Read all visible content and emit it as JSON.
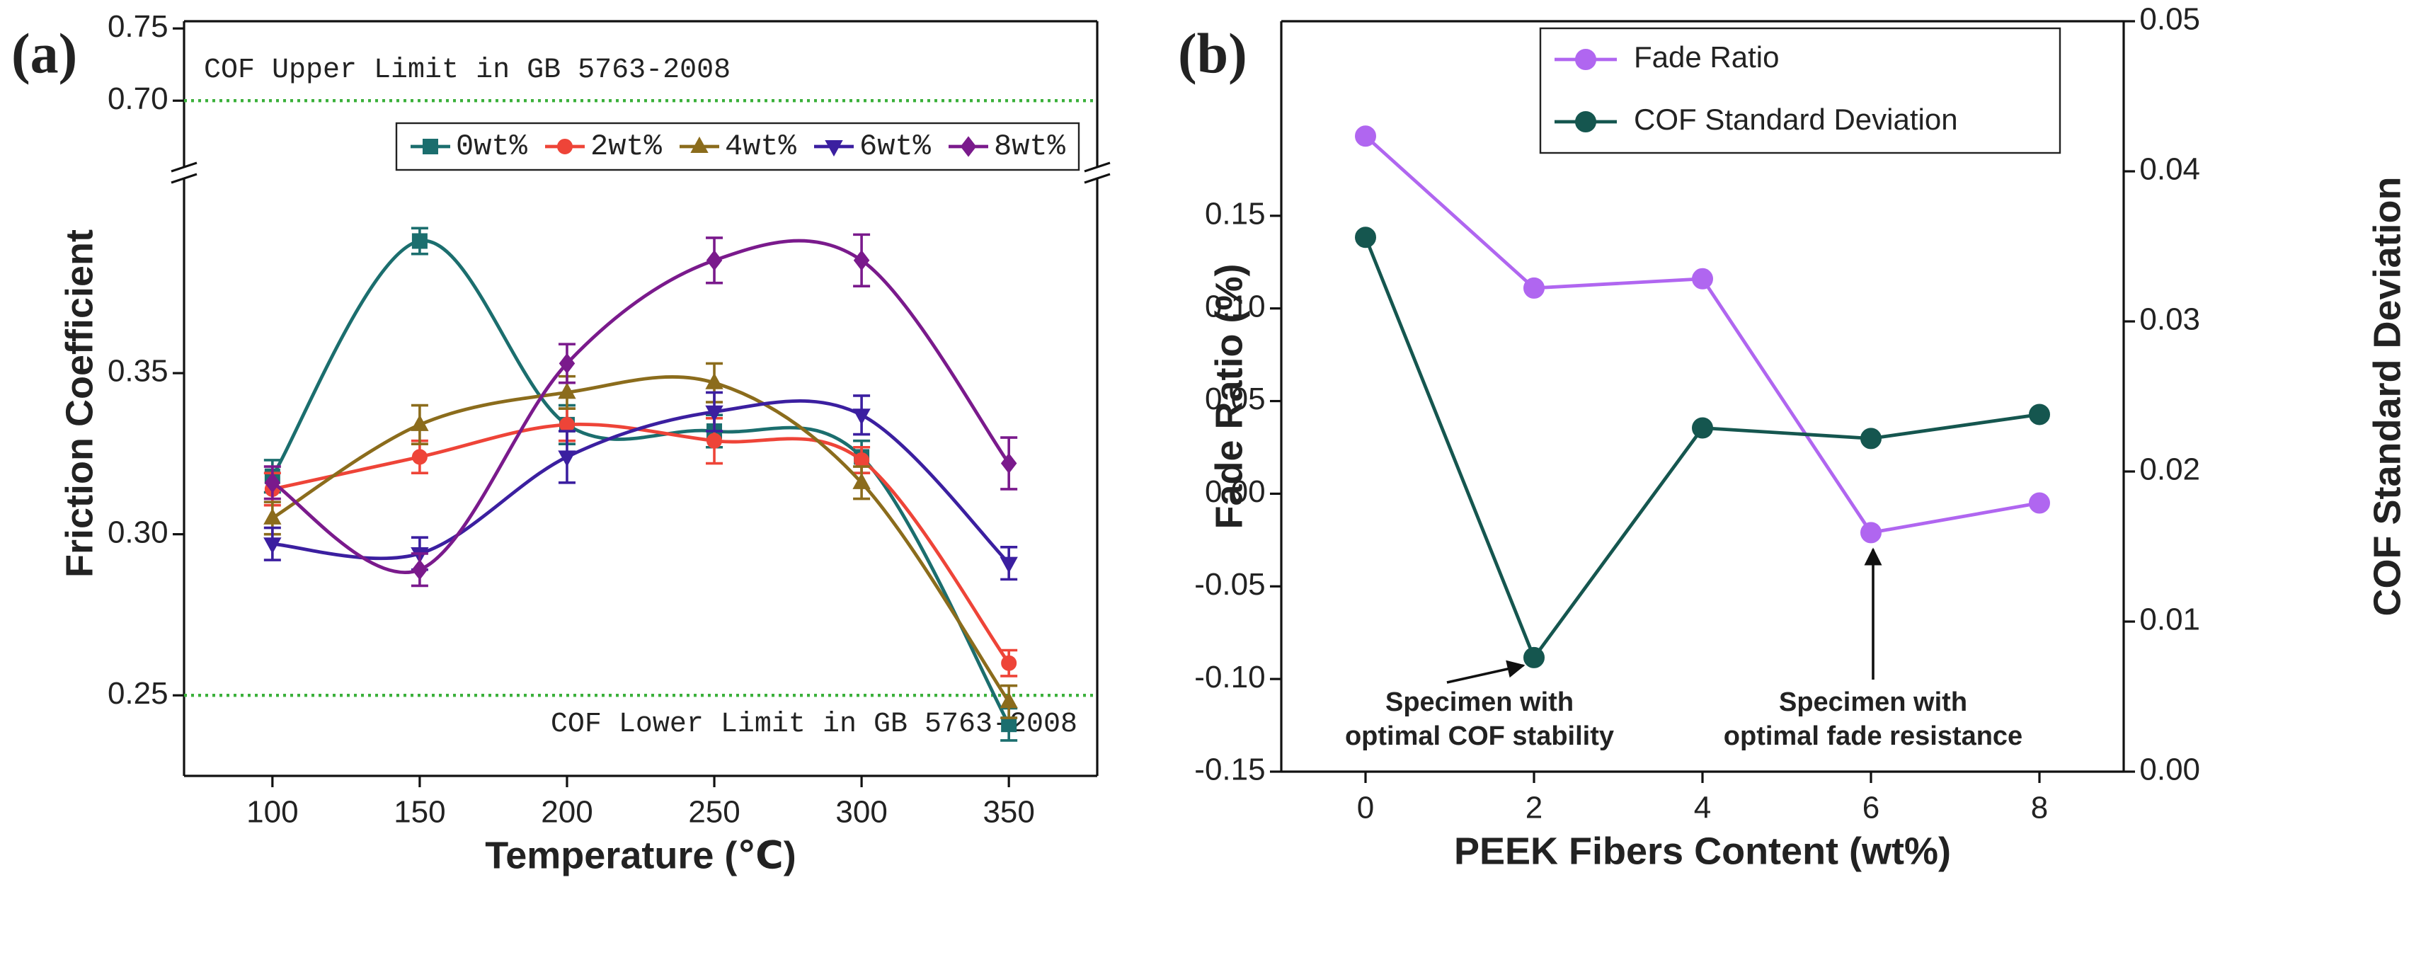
{
  "chart_data": [
    {
      "type": "line",
      "panel_label": "(a)",
      "smooth": true,
      "x_label": "Temperature (℃)",
      "y_label": "Friction Coefficient",
      "x": [
        100,
        150,
        200,
        250,
        300,
        350
      ],
      "xlim": [
        70,
        380
      ],
      "xticks": [
        100,
        150,
        200,
        250,
        300,
        350
      ],
      "ylim": [
        0.225,
        0.41
      ],
      "yticks": [
        {
          "value": 0.25,
          "label": "0.25"
        },
        {
          "value": 0.3,
          "label": "0.30"
        },
        {
          "value": 0.35,
          "label": "0.35"
        }
      ],
      "upper_ylim": [
        0.655,
        0.755
      ],
      "upper_yticks": [
        {
          "value": 0.7,
          "label": "0.70"
        },
        {
          "value": 0.75,
          "label": "0.75"
        }
      ],
      "reference_lines": [
        {
          "value": 0.7,
          "label": "COF Upper Limit in GB 5763-2008",
          "color": "#3bb03b"
        },
        {
          "value": 0.25,
          "label": "COF Lower Limit in GB 5763-2008",
          "color": "#3bb03b"
        }
      ],
      "legend": "top",
      "series": [
        {
          "name": "0wt%",
          "color": "#1b6e6e",
          "marker": "square",
          "values": [
            0.318,
            0.391,
            0.334,
            0.332,
            0.324,
            0.241
          ],
          "errors": [
            0.005,
            0.004,
            0.006,
            0.005,
            0.005,
            0.005
          ]
        },
        {
          "name": "2wt%",
          "color": "#ee4438",
          "marker": "circle",
          "values": [
            0.314,
            0.324,
            0.334,
            0.329,
            0.323,
            0.26
          ],
          "errors": [
            0.005,
            0.005,
            0.005,
            0.007,
            0.004,
            0.004
          ]
        },
        {
          "name": "4wt%",
          "color": "#8b6c1c",
          "marker": "triangle-up",
          "values": [
            0.305,
            0.334,
            0.344,
            0.347,
            0.316,
            0.248
          ],
          "errors": [
            0.005,
            0.006,
            0.005,
            0.006,
            0.005,
            0.005
          ]
        },
        {
          "name": "6wt%",
          "color": "#3b1fa0",
          "marker": "triangle-down",
          "values": [
            0.297,
            0.294,
            0.324,
            0.338,
            0.337,
            0.291
          ],
          "errors": [
            0.005,
            0.005,
            0.008,
            0.006,
            0.006,
            0.005
          ]
        },
        {
          "name": "8wt%",
          "color": "#7a1a8c",
          "marker": "diamond",
          "values": [
            0.316,
            0.289,
            0.353,
            0.385,
            0.385,
            0.322
          ],
          "errors": [
            0.005,
            0.005,
            0.006,
            0.007,
            0.008,
            0.008
          ]
        }
      ]
    },
    {
      "type": "line",
      "panel_label": "(b)",
      "smooth": false,
      "x_label": "PEEK Fibers Content (wt%)",
      "y_label": "Fade Ratio (%)",
      "y2_label": "COF Standard Deviation",
      "x": [
        0,
        2,
        4,
        6,
        8
      ],
      "xlim": [
        -1,
        9
      ],
      "xticks": [
        0,
        2,
        4,
        6,
        8
      ],
      "ylim": [
        -0.15,
        0.255
      ],
      "yticks": [
        -0.15,
        {
          "value": -0.1,
          "label": "-0.10"
        },
        -0.05,
        {
          "value": 0,
          "label": "0.00"
        },
        0.05,
        {
          "value": 0.1,
          "label": "0.10"
        },
        0.15
      ],
      "y2lim": [
        0,
        0.05
      ],
      "y2ticks": [
        {
          "value": 0,
          "label": "0.00"
        },
        0.01,
        0.02,
        0.03,
        0.04,
        0.05
      ],
      "legend": "top",
      "series": [
        {
          "name": "Fade Ratio",
          "color": "#b066f0",
          "marker": "circle",
          "values": [
            0.193,
            0.111,
            0.116,
            -0.021,
            -0.005
          ]
        },
        {
          "name": "COF Standard Deviation",
          "color": "#15564f",
          "marker": "circle",
          "axis": "y2",
          "values": [
            0.0356,
            0.0076,
            0.0229,
            0.0222,
            0.0238
          ]
        }
      ],
      "annotations": [
        {
          "lines": [
            "Specimen with",
            "optimal COF stability"
          ]
        },
        {
          "lines": [
            "Specimen with",
            "optimal fade resistance"
          ]
        }
      ]
    }
  ]
}
